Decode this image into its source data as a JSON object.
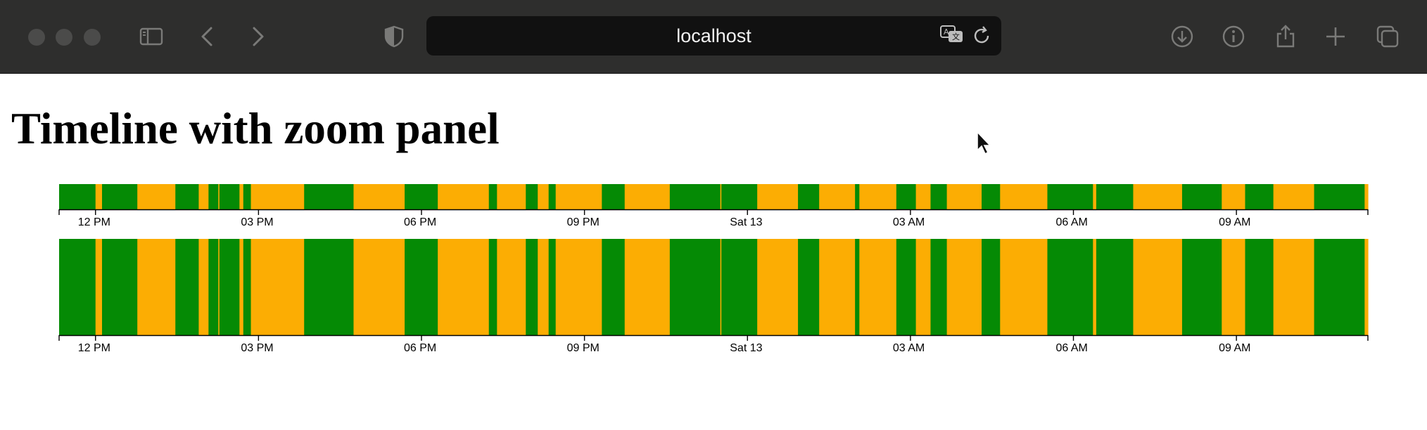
{
  "browser": {
    "url": "localhost",
    "icons": [
      "sidebar-icon",
      "back-icon",
      "forward-icon",
      "shield-icon",
      "translate-icon",
      "reload-icon",
      "download-icon",
      "info-icon",
      "share-icon",
      "new-tab-icon",
      "tabs-overview-icon"
    ]
  },
  "page": {
    "title": "Timeline with zoom panel"
  },
  "colors": {
    "green": "#058a05",
    "orange": "#fcad03",
    "toolbar": "#2e2e2d"
  },
  "chart_data": {
    "type": "timeline",
    "x_start": "Fri 12 11:20",
    "x_end": "Sat 13 11:25",
    "ticks": [
      "12 PM",
      "03 PM",
      "06 PM",
      "09 PM",
      "Sat 13",
      "03 AM",
      "06 AM",
      "09 AM"
    ],
    "tick_hours": [
      12,
      15,
      18,
      21,
      24,
      27,
      30,
      33
    ],
    "hour_range": [
      11.33,
      35.42
    ],
    "segments": [
      {
        "start": 11.33,
        "end": 12.0,
        "state": "green"
      },
      {
        "start": 12.0,
        "end": 12.12,
        "state": "orange"
      },
      {
        "start": 12.12,
        "end": 12.77,
        "state": "green"
      },
      {
        "start": 12.77,
        "end": 13.47,
        "state": "orange"
      },
      {
        "start": 13.47,
        "end": 13.9,
        "state": "green"
      },
      {
        "start": 13.9,
        "end": 14.08,
        "state": "orange"
      },
      {
        "start": 14.08,
        "end": 14.26,
        "state": "green"
      },
      {
        "start": 14.26,
        "end": 14.28,
        "state": "orange"
      },
      {
        "start": 14.28,
        "end": 14.65,
        "state": "green"
      },
      {
        "start": 14.65,
        "end": 14.72,
        "state": "orange"
      },
      {
        "start": 14.72,
        "end": 14.86,
        "state": "green"
      },
      {
        "start": 14.86,
        "end": 15.84,
        "state": "orange"
      },
      {
        "start": 15.84,
        "end": 16.75,
        "state": "green"
      },
      {
        "start": 16.75,
        "end": 17.69,
        "state": "orange"
      },
      {
        "start": 17.69,
        "end": 18.3,
        "state": "green"
      },
      {
        "start": 18.3,
        "end": 19.24,
        "state": "orange"
      },
      {
        "start": 19.24,
        "end": 19.39,
        "state": "green"
      },
      {
        "start": 19.39,
        "end": 19.92,
        "state": "orange"
      },
      {
        "start": 19.92,
        "end": 20.14,
        "state": "green"
      },
      {
        "start": 20.14,
        "end": 20.34,
        "state": "orange"
      },
      {
        "start": 20.34,
        "end": 20.47,
        "state": "green"
      },
      {
        "start": 20.47,
        "end": 21.32,
        "state": "orange"
      },
      {
        "start": 21.32,
        "end": 21.74,
        "state": "green"
      },
      {
        "start": 21.74,
        "end": 22.57,
        "state": "orange"
      },
      {
        "start": 22.57,
        "end": 23.5,
        "state": "green"
      },
      {
        "start": 23.5,
        "end": 23.52,
        "state": "orange"
      },
      {
        "start": 23.52,
        "end": 24.18,
        "state": "green"
      },
      {
        "start": 24.18,
        "end": 24.93,
        "state": "orange"
      },
      {
        "start": 24.93,
        "end": 25.32,
        "state": "green"
      },
      {
        "start": 25.32,
        "end": 25.98,
        "state": "orange"
      },
      {
        "start": 25.98,
        "end": 26.06,
        "state": "green"
      },
      {
        "start": 26.06,
        "end": 26.74,
        "state": "orange"
      },
      {
        "start": 26.74,
        "end": 27.1,
        "state": "green"
      },
      {
        "start": 27.1,
        "end": 27.37,
        "state": "orange"
      },
      {
        "start": 27.37,
        "end": 27.67,
        "state": "green"
      },
      {
        "start": 27.67,
        "end": 28.31,
        "state": "orange"
      },
      {
        "start": 28.31,
        "end": 28.65,
        "state": "green"
      },
      {
        "start": 28.65,
        "end": 29.52,
        "state": "orange"
      },
      {
        "start": 29.52,
        "end": 30.36,
        "state": "green"
      },
      {
        "start": 30.36,
        "end": 30.42,
        "state": "orange"
      },
      {
        "start": 30.42,
        "end": 31.1,
        "state": "green"
      },
      {
        "start": 31.1,
        "end": 32.0,
        "state": "orange"
      },
      {
        "start": 32.0,
        "end": 32.73,
        "state": "green"
      },
      {
        "start": 32.73,
        "end": 33.16,
        "state": "orange"
      },
      {
        "start": 33.16,
        "end": 33.68,
        "state": "green"
      },
      {
        "start": 33.68,
        "end": 34.43,
        "state": "orange"
      },
      {
        "start": 34.43,
        "end": 35.36,
        "state": "green"
      },
      {
        "start": 35.36,
        "end": 35.42,
        "state": "orange"
      }
    ]
  }
}
